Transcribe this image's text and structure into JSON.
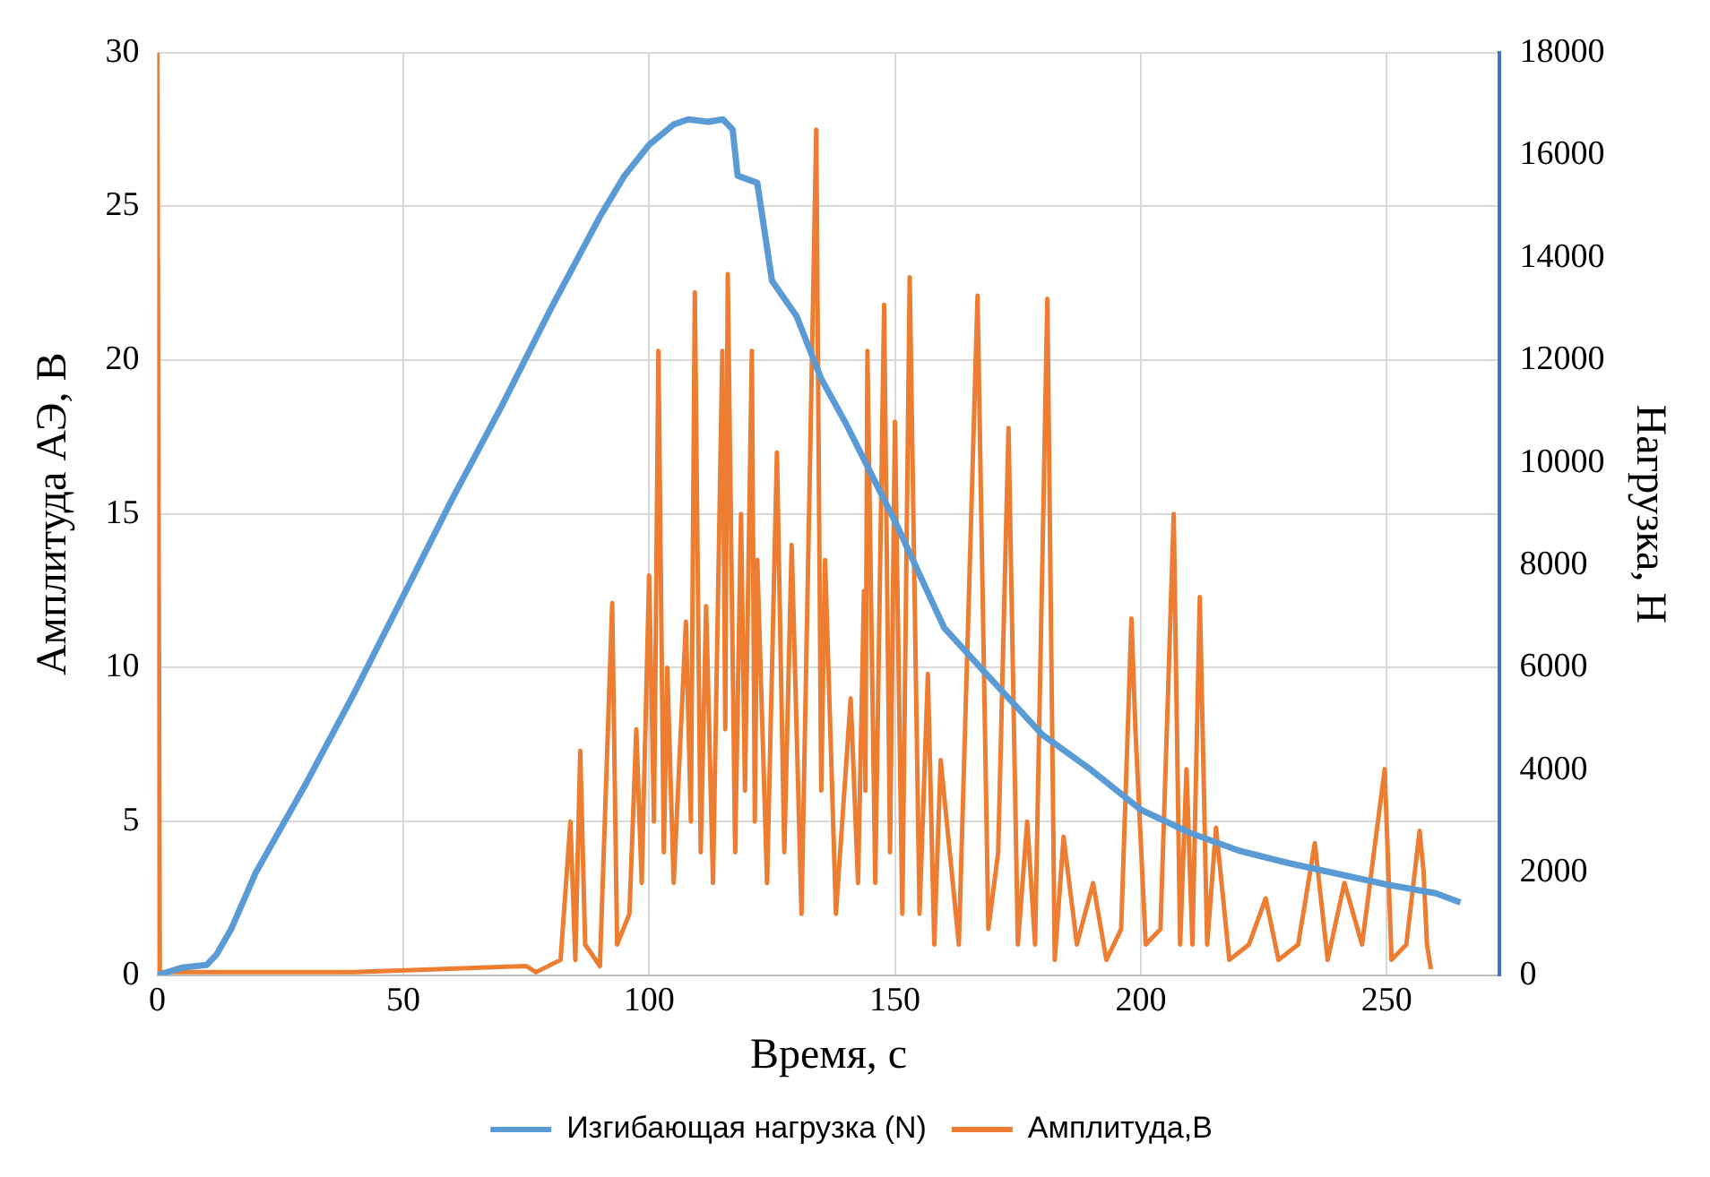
{
  "chart_data": {
    "type": "line",
    "xlabel": "Время, с",
    "ylabel": "Амплитуда АЭ, В",
    "y2label": "Нагрузка, Н",
    "xlim": [
      0,
      273
    ],
    "xticks": [
      0,
      50,
      100,
      150,
      200,
      250
    ],
    "ylim": [
      0,
      30
    ],
    "yticks": [
      0,
      5,
      10,
      15,
      20,
      25,
      30
    ],
    "y2lim": [
      0,
      18000
    ],
    "y2ticks": [
      0,
      2000,
      4000,
      6000,
      8000,
      10000,
      12000,
      14000,
      16000,
      18000
    ],
    "grid": true,
    "legend": "bottom",
    "marker": "none",
    "line_style": "solid",
    "series": [
      {
        "name": "Изгибающая нагрузка (N)",
        "color": "#5b9bd5",
        "axis": "y2",
        "x": [
          0,
          5,
          10,
          12,
          15,
          20,
          30,
          40,
          50,
          60,
          70,
          80,
          90,
          95,
          100,
          105,
          108,
          112,
          115,
          117,
          118,
          122,
          125,
          130,
          135,
          140,
          150,
          160,
          170,
          180,
          190,
          200,
          210,
          220,
          230,
          240,
          250,
          260,
          265
        ],
        "values": [
          0,
          150,
          200,
          400,
          900,
          2000,
          3700,
          5500,
          7400,
          9300,
          11100,
          13000,
          14800,
          15600,
          16200,
          16600,
          16700,
          16650,
          16700,
          16500,
          15600,
          15460,
          13550,
          12860,
          11640,
          10770,
          8860,
          6780,
          5730,
          4690,
          4000,
          3230,
          2780,
          2430,
          2190,
          1980,
          1770,
          1600,
          1420
        ]
      },
      {
        "name": "Амплитуда,В",
        "color": "#ed7d31",
        "axis": "y",
        "x": [
          0,
          0.5,
          40,
          75,
          77,
          82,
          84,
          85,
          86,
          87,
          90,
          92.5,
          93.5,
          96,
          97.4,
          98.5,
          100,
          101,
          101.9,
          103,
          103.7,
          105,
          107.5,
          108.5,
          109.3,
          110.5,
          111.6,
          113,
          114.9,
          115.5,
          116,
          117.5,
          118.7,
          119.5,
          120.9,
          121.5,
          122,
          124,
          126,
          127.5,
          129,
          131,
          134,
          135,
          135.8,
          138,
          141,
          142.5,
          143.7,
          144,
          144.4,
          146,
          147.8,
          149,
          150,
          151.5,
          153,
          155,
          156.7,
          158,
          159.3,
          163,
          166.8,
          169,
          171,
          173.1,
          175,
          176.9,
          178.5,
          181,
          182.5,
          184.3,
          187,
          190.3,
          193,
          196,
          198.1,
          198.9,
          201,
          204,
          206.7,
          208,
          209.3,
          210.5,
          212,
          213.5,
          215.3,
          218,
          222,
          225.4,
          228,
          232,
          235.4,
          238,
          241.4,
          245,
          249.6,
          251,
          254,
          256.7,
          257.5,
          258.2,
          259
        ],
        "values": [
          30,
          0.1,
          0.1,
          0.3,
          0.1,
          0.5,
          5,
          0.5,
          7.3,
          1,
          0.3,
          12.1,
          1,
          2,
          8,
          3,
          13,
          5,
          20.3,
          4,
          10,
          3,
          11.5,
          5,
          22.2,
          4,
          12,
          3,
          20.3,
          8,
          22.8,
          4,
          15,
          6,
          20.3,
          5,
          13.5,
          3,
          17,
          4,
          14,
          2,
          27.5,
          6,
          13.5,
          2,
          9,
          3,
          12.5,
          6,
          20.3,
          3,
          21.8,
          4,
          18,
          2,
          22.7,
          2,
          9.8,
          1,
          7,
          1,
          22.1,
          1.5,
          4,
          17.8,
          1,
          5,
          1,
          22,
          0.5,
          4.5,
          1,
          3,
          0.5,
          1.5,
          11.6,
          8,
          1,
          1.5,
          15,
          1,
          6.7,
          1,
          12.3,
          1,
          4.8,
          0.5,
          1,
          2.5,
          0.5,
          1,
          4.3,
          0.5,
          3,
          1,
          6.7,
          0.5,
          1,
          4.7,
          3.4,
          1,
          0.2
        ]
      }
    ]
  }
}
